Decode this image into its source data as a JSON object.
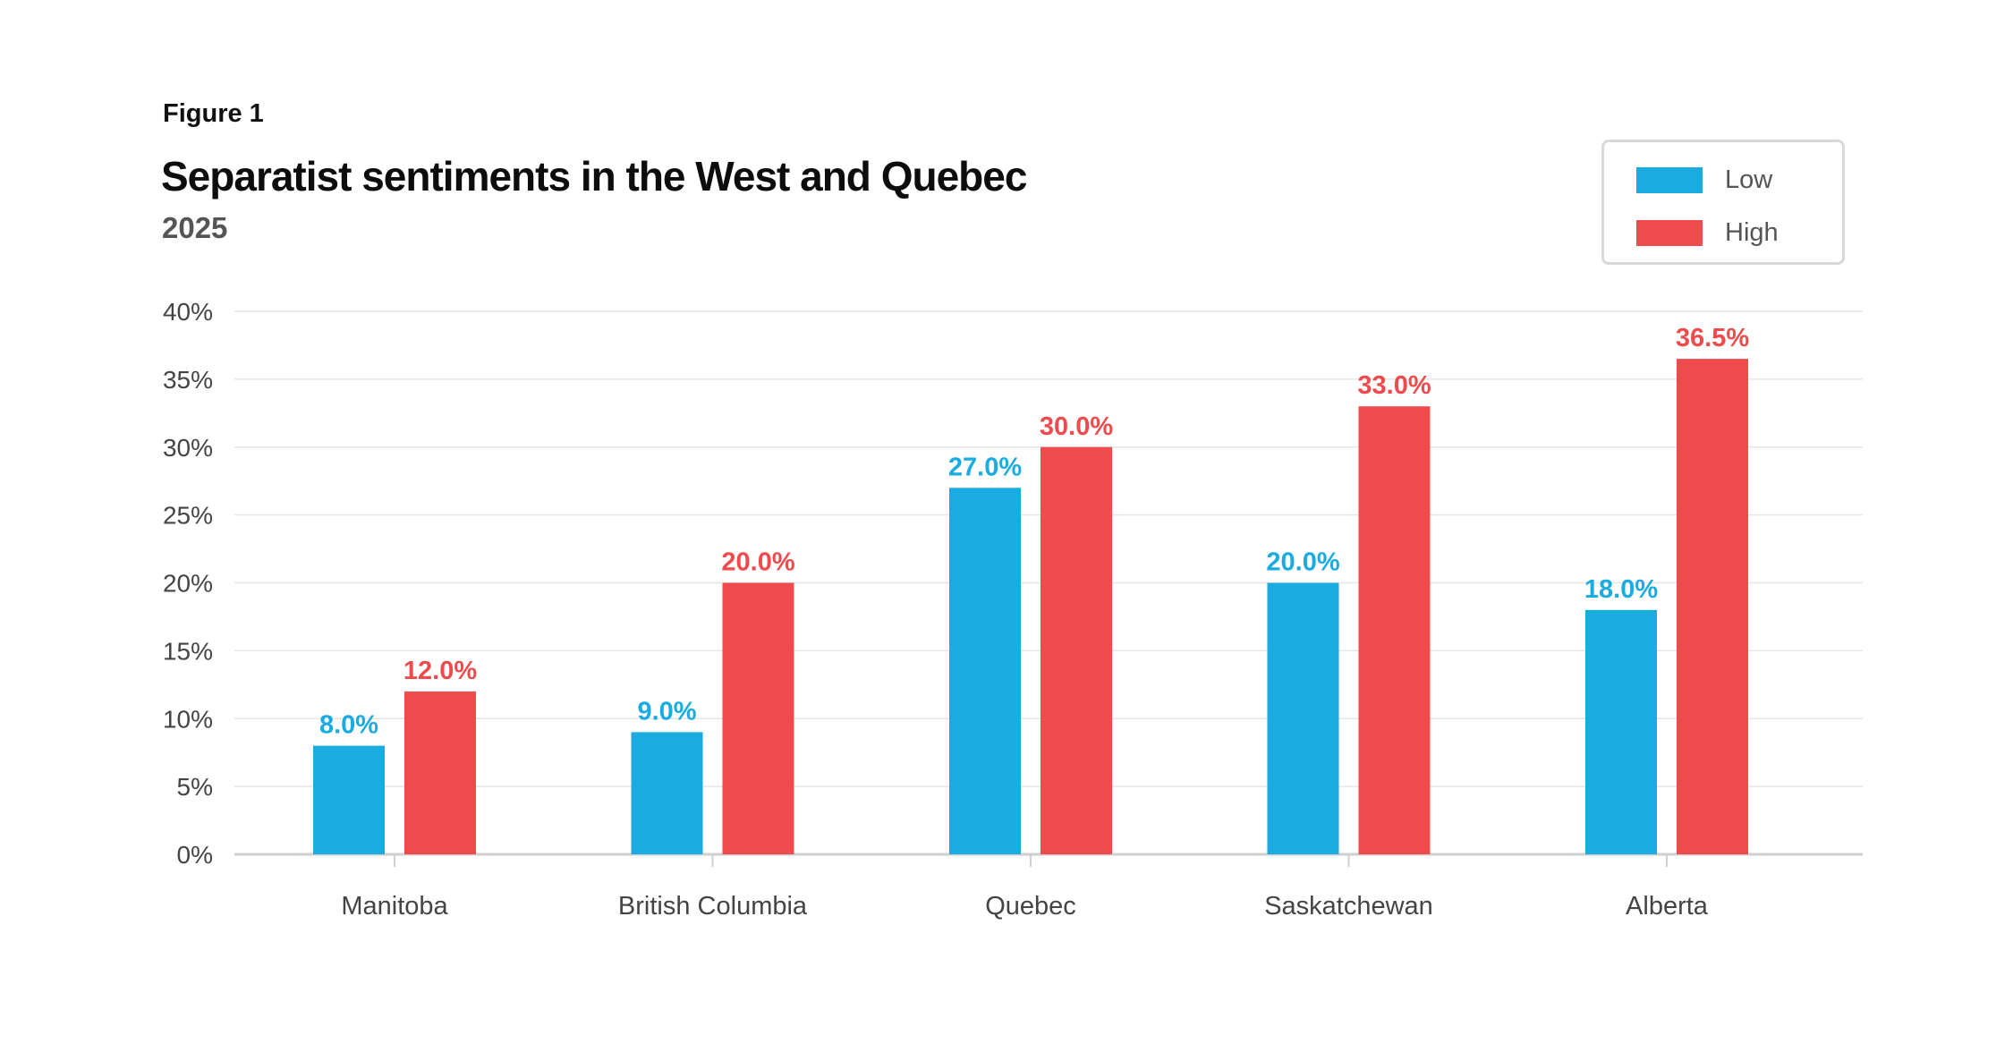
{
  "figure_label": "Figure 1",
  "colors": {
    "low": "#1aabe1",
    "high": "#ef4b4d",
    "grid": "#e6e6e6",
    "axis": "#cfcfcf"
  },
  "chart_data": {
    "type": "bar",
    "title": "Separatist sentiments in the West and Quebec",
    "subtitle": "2025",
    "xlabel": "",
    "ylabel": "",
    "categories": [
      "Manitoba",
      "British Columbia",
      "Quebec",
      "Saskatchewan",
      "Alberta"
    ],
    "series": [
      {
        "name": "Low",
        "values": [
          8.0,
          9.0,
          27.0,
          20.0,
          18.0
        ],
        "labels": [
          "8.0%",
          "9.0%",
          "27.0%",
          "20.0%",
          "18.0%"
        ]
      },
      {
        "name": "High",
        "values": [
          12.0,
          20.0,
          30.0,
          33.0,
          36.5
        ],
        "labels": [
          "12.0%",
          "20.0%",
          "30.0%",
          "33.0%",
          "36.5%"
        ]
      }
    ],
    "ylim": [
      0,
      40
    ],
    "yticks": [
      {
        "value": 0,
        "label": "0%"
      },
      {
        "value": 5,
        "label": "5%"
      },
      {
        "value": 10,
        "label": "10%"
      },
      {
        "value": 15,
        "label": "15%"
      },
      {
        "value": 20,
        "label": "20%"
      },
      {
        "value": 25,
        "label": "25%"
      },
      {
        "value": 30,
        "label": "30%"
      },
      {
        "value": 35,
        "label": "35%"
      },
      {
        "value": 40,
        "label": "40%"
      }
    ],
    "grid": true,
    "legend_position": "top-right"
  }
}
